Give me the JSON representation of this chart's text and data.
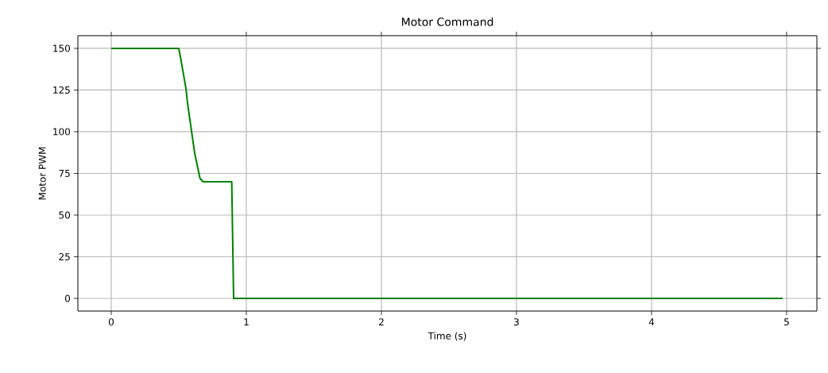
{
  "chart_data": {
    "type": "line",
    "title": "Motor Command",
    "xlabel": "Time (s)",
    "ylabel": "Motor PWM",
    "x": [
      0,
      0.5,
      0.514,
      0.553,
      0.565,
      0.618,
      0.657,
      0.68,
      0.892,
      0.906,
      4.97
    ],
    "values": [
      150,
      150,
      144,
      126,
      117,
      87,
      72,
      70,
      70,
      0,
      0
    ],
    "color": "#008000",
    "xlim": [
      -0.247,
      5.224
    ],
    "ylim": [
      -7.6,
      157.6
    ],
    "xticks": [
      0,
      1,
      2,
      3,
      4,
      5
    ],
    "yticks": [
      0,
      25,
      50,
      75,
      100,
      125,
      150
    ],
    "grid": true,
    "marker": "none",
    "line_style": "solid"
  }
}
